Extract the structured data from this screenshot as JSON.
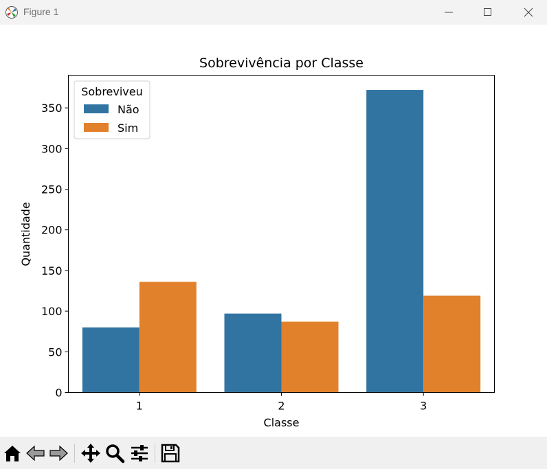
{
  "window": {
    "title": "Figure 1",
    "icons": [
      "matplotlib-logo-icon",
      "minimize-icon",
      "maximize-icon",
      "close-icon"
    ]
  },
  "toolbar": {
    "icons": [
      "home-icon",
      "back-arrow-icon",
      "forward-arrow-icon",
      "pan-move-icon",
      "zoom-magnifier-icon",
      "configure-subplots-icon",
      "save-disk-icon"
    ]
  },
  "colors": {
    "nao": "#3274a1",
    "sim": "#e1812c"
  },
  "chart_data": {
    "type": "bar",
    "title": "Sobrevivência por Classe",
    "xlabel": "Classe",
    "ylabel": "Quantidade",
    "categories": [
      "1",
      "2",
      "3"
    ],
    "series": [
      {
        "name": "Não",
        "values": [
          80,
          97,
          372
        ]
      },
      {
        "name": "Sim",
        "values": [
          136,
          87,
          119
        ]
      }
    ],
    "ylim": [
      0,
      390
    ],
    "yticks": [
      0,
      50,
      100,
      150,
      200,
      250,
      300,
      350
    ],
    "legend": {
      "title": "Sobreviveu",
      "placement": "upper left"
    },
    "grid": false
  }
}
